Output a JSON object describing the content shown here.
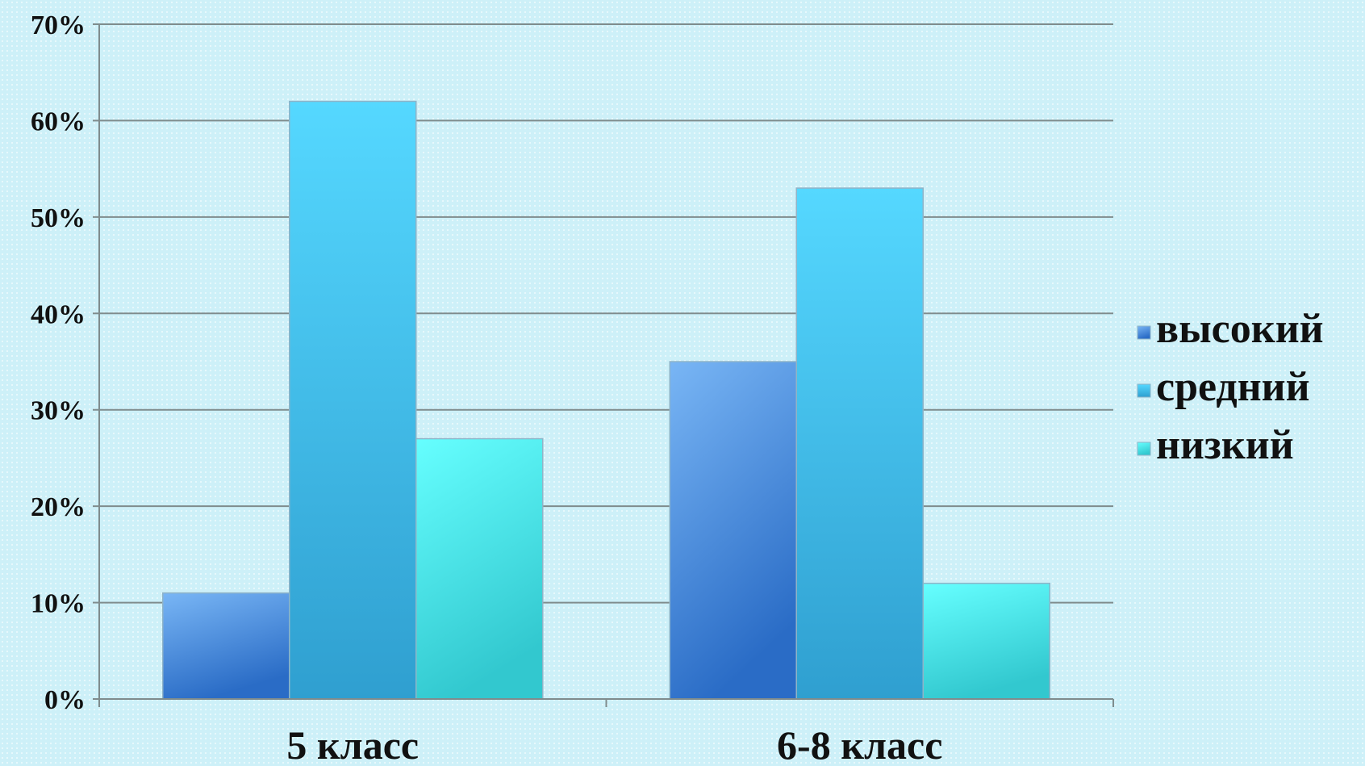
{
  "chart_data": {
    "type": "bar",
    "title": "",
    "xlabel": "",
    "ylabel": "",
    "categories": [
      "5 класс",
      "6-8 класс"
    ],
    "series": [
      {
        "name": "высокий",
        "values": [
          11,
          35
        ],
        "color": "#3f86d8"
      },
      {
        "name": "средний",
        "values": [
          62,
          53
        ],
        "color": "#3bb5e6"
      },
      {
        "name": "низкий",
        "values": [
          27,
          12
        ],
        "color": "#44e2e2"
      }
    ],
    "ylim": [
      0,
      70
    ],
    "y_ticks": [
      0,
      10,
      20,
      30,
      40,
      50,
      60,
      70
    ],
    "y_tick_labels": [
      "0%",
      "10%",
      "20%",
      "30%",
      "40%",
      "50%",
      "60%",
      "70%"
    ],
    "grid": true,
    "legend_position": "right"
  }
}
